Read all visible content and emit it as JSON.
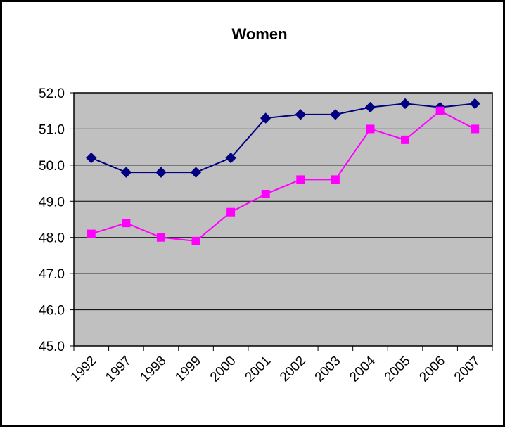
{
  "chart_data": {
    "type": "line",
    "title": "Women",
    "xlabel": "",
    "ylabel": "",
    "categories": [
      "1992",
      "1997",
      "1998",
      "1999",
      "2000",
      "2001",
      "2002",
      "2003",
      "2004",
      "2005",
      "2006",
      "2007"
    ],
    "ylim": [
      45.0,
      52.0
    ],
    "yticks": [
      "45.0",
      "46.0",
      "47.0",
      "48.0",
      "49.0",
      "50.0",
      "51.0",
      "52.0"
    ],
    "grid": true,
    "legend": "none",
    "plot_background": "#c0c0c0",
    "series": [
      {
        "color": "#000080",
        "marker": "diamond",
        "values": [
          50.2,
          49.8,
          49.8,
          49.8,
          50.2,
          51.3,
          51.4,
          51.4,
          51.6,
          51.7,
          51.6,
          51.7
        ]
      },
      {
        "color": "#ff00ff",
        "marker": "square",
        "values": [
          48.1,
          48.4,
          48.0,
          47.9,
          48.7,
          49.2,
          49.6,
          49.6,
          51.0,
          50.7,
          51.5,
          51.0
        ]
      }
    ]
  }
}
